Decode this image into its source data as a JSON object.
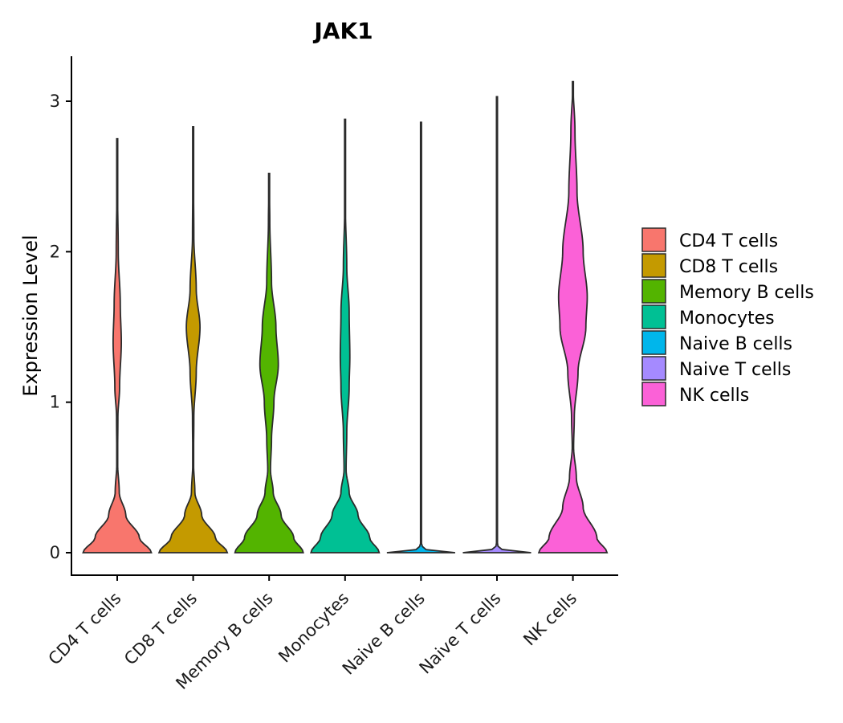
{
  "chart_data": {
    "type": "violin",
    "title": "JAK1",
    "xlabel": "",
    "ylabel": "Expression Level",
    "ylim": [
      -0.15,
      3.3
    ],
    "yticks": [
      0,
      1,
      2,
      3
    ],
    "ytick_labels": [
      "0",
      "1",
      "2",
      "3"
    ],
    "categories": [
      "CD4 T cells",
      "CD8 T cells",
      "Memory B cells",
      "Monocytes",
      "Naive B cells",
      "Naive T cells",
      "NK cells"
    ],
    "colors": [
      "#F8766D",
      "#C49A00",
      "#53B400",
      "#00C094",
      "#00B6EB",
      "#A58AFF",
      "#FB61D7"
    ],
    "legend": {
      "position": "right",
      "entries": [
        "CD4 T cells",
        "CD8 T cells",
        "Memory B cells",
        "Monocytes",
        "Naive B cells",
        "Naive T cells",
        "NK cells"
      ]
    },
    "violins": [
      {
        "name": "CD4 T cells",
        "max": 2.75,
        "profile": [
          [
            0,
            1.0
          ],
          [
            0.1,
            0.65
          ],
          [
            0.25,
            0.25
          ],
          [
            0.4,
            0.06
          ],
          [
            0.6,
            0.01
          ],
          [
            0.9,
            0.02
          ],
          [
            1.1,
            0.07
          ],
          [
            1.4,
            0.12
          ],
          [
            1.65,
            0.09
          ],
          [
            2.0,
            0.03
          ],
          [
            2.4,
            0.01
          ],
          [
            2.75,
            0
          ]
        ]
      },
      {
        "name": "CD8 T cells",
        "max": 2.83,
        "profile": [
          [
            0,
            1.0
          ],
          [
            0.1,
            0.65
          ],
          [
            0.25,
            0.25
          ],
          [
            0.4,
            0.05
          ],
          [
            0.6,
            0.01
          ],
          [
            0.9,
            0.02
          ],
          [
            1.2,
            0.09
          ],
          [
            1.5,
            0.2
          ],
          [
            1.75,
            0.09
          ],
          [
            2.1,
            0.02
          ],
          [
            2.5,
            0.01
          ],
          [
            2.83,
            0
          ]
        ]
      },
      {
        "name": "Memory B cells",
        "max": 2.52,
        "profile": [
          [
            0,
            1.0
          ],
          [
            0.1,
            0.72
          ],
          [
            0.25,
            0.35
          ],
          [
            0.4,
            0.12
          ],
          [
            0.55,
            0.04
          ],
          [
            0.75,
            0.07
          ],
          [
            1.0,
            0.14
          ],
          [
            1.25,
            0.27
          ],
          [
            1.5,
            0.2
          ],
          [
            1.8,
            0.07
          ],
          [
            2.2,
            0.02
          ],
          [
            2.52,
            0
          ]
        ]
      },
      {
        "name": "Monocytes",
        "max": 2.88,
        "profile": [
          [
            0,
            1.0
          ],
          [
            0.1,
            0.72
          ],
          [
            0.25,
            0.38
          ],
          [
            0.4,
            0.12
          ],
          [
            0.55,
            0.03
          ],
          [
            0.8,
            0.05
          ],
          [
            1.1,
            0.12
          ],
          [
            1.3,
            0.14
          ],
          [
            1.6,
            0.12
          ],
          [
            1.9,
            0.05
          ],
          [
            2.3,
            0.01
          ],
          [
            2.88,
            0
          ]
        ]
      },
      {
        "name": "Naive B cells",
        "max": 2.86,
        "profile": [
          [
            0,
            1.0
          ],
          [
            0.02,
            0.15
          ],
          [
            0.05,
            0.012
          ],
          [
            2.86,
            0
          ]
        ]
      },
      {
        "name": "Naive T cells",
        "max": 3.03,
        "profile": [
          [
            0,
            1.0
          ],
          [
            0.02,
            0.15
          ],
          [
            0.05,
            0.012
          ],
          [
            3.03,
            0
          ]
        ]
      },
      {
        "name": "NK cells",
        "max": 3.13,
        "profile": [
          [
            0,
            1.0
          ],
          [
            0.1,
            0.7
          ],
          [
            0.3,
            0.3
          ],
          [
            0.5,
            0.1
          ],
          [
            0.7,
            0.02
          ],
          [
            0.9,
            0.04
          ],
          [
            1.2,
            0.15
          ],
          [
            1.5,
            0.38
          ],
          [
            1.7,
            0.42
          ],
          [
            2.0,
            0.3
          ],
          [
            2.4,
            0.12
          ],
          [
            2.8,
            0.06
          ],
          [
            3.13,
            0
          ]
        ]
      }
    ]
  }
}
